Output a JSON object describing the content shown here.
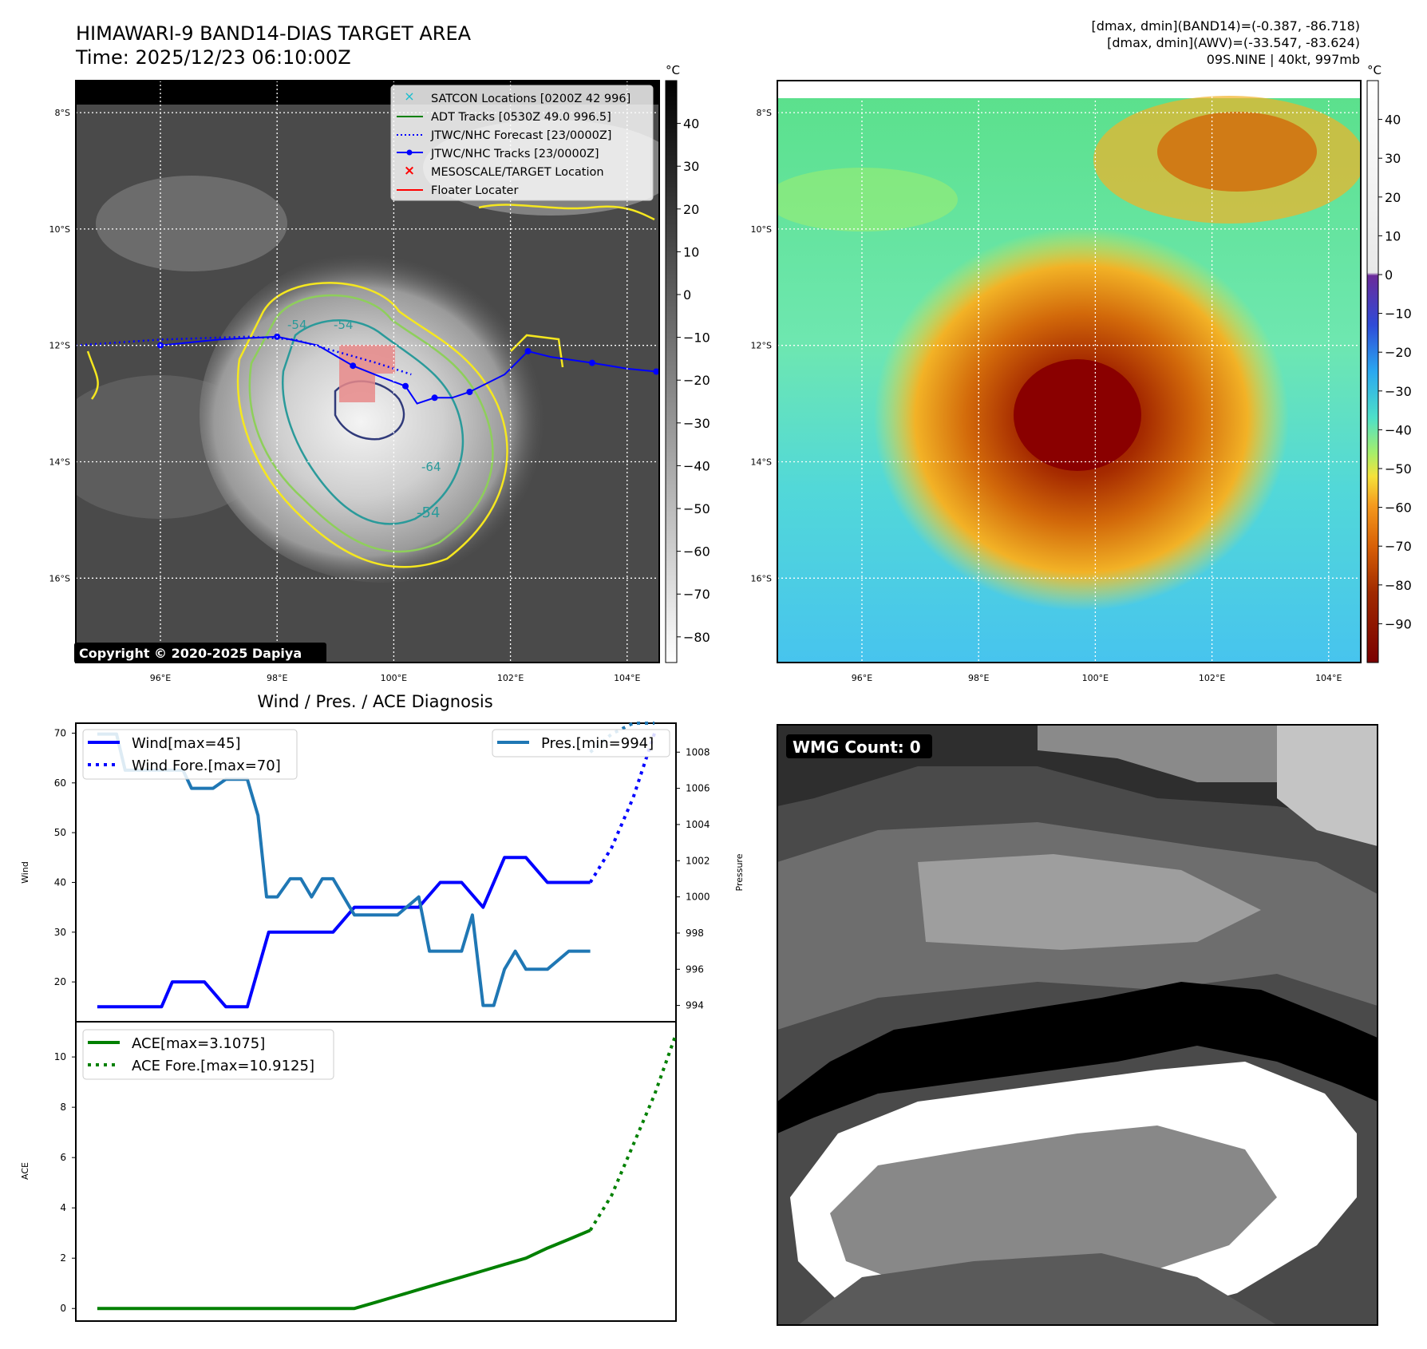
{
  "header": {
    "title_line1": "HIMAWARI-9 BAND14-DIAS TARGET AREA",
    "title_line2": "Time: 2025/12/23 06:10:00Z",
    "info_line1": "[dmax, dmin](BAND14)=(-0.387, -86.718)",
    "info_line2": "[dmax, dmin](AWV)=(-33.547, -83.624)",
    "info_line3": "09S.NINE | 40kt, 997mb"
  },
  "map": {
    "lat_labels": [
      "8°S",
      "10°S",
      "12°S",
      "14°S",
      "16°S"
    ],
    "lat_values": [
      -8,
      -10,
      -12,
      -14,
      -16
    ],
    "lon_labels": [
      "96°E",
      "98°E",
      "100°E",
      "102°E",
      "104°E"
    ],
    "lon_values": [
      96,
      98,
      100,
      102,
      104
    ],
    "lat_range": [
      -17.45,
      -7.45
    ],
    "lon_range": [
      94.55,
      104.55
    ],
    "copyright": "Copyright © 2020-2025 Dapiya",
    "contour_labels": [
      "-54",
      "-54",
      "-64",
      "-54"
    ],
    "legend": [
      {
        "label": "SATCON Locations [0200Z 42 996]",
        "color": "#17becf",
        "style": "x"
      },
      {
        "label": "ADT Tracks [0530Z 49.0 996.5]",
        "color": "#008000",
        "style": "solid"
      },
      {
        "label": "JTWC/NHC Forecast [23/0000Z]",
        "color": "#0000ff",
        "style": "dotted"
      },
      {
        "label": "JTWC/NHC Tracks [23/0000Z]",
        "color": "#0000ff",
        "style": "line-dot"
      },
      {
        "label": "MESOSCALE/TARGET Location",
        "color": "#ff0000",
        "style": "x"
      },
      {
        "label": "Floater Locater",
        "color": "#ff0000",
        "style": "solid"
      }
    ],
    "jtwc_track": [
      [
        96.0,
        -12.0
      ],
      [
        97.0,
        -11.9
      ],
      [
        98.0,
        -11.85
      ],
      [
        98.7,
        -12.0
      ],
      [
        99.3,
        -12.35
      ],
      [
        99.8,
        -12.55
      ],
      [
        100.2,
        -12.7
      ],
      [
        100.4,
        -13.0
      ],
      [
        100.7,
        -12.9
      ],
      [
        101.0,
        -12.9
      ],
      [
        101.3,
        -12.8
      ],
      [
        101.9,
        -12.5
      ],
      [
        102.3,
        -12.1
      ],
      [
        102.7,
        -12.2
      ],
      [
        103.4,
        -12.3
      ],
      [
        104.0,
        -12.4
      ],
      [
        104.5,
        -12.45
      ]
    ],
    "jtwc_forecast": [
      [
        94.55,
        -12.0
      ],
      [
        96.0,
        -11.9
      ],
      [
        97.5,
        -11.85
      ],
      [
        98.3,
        -11.9
      ],
      [
        99.0,
        -12.1
      ],
      [
        99.7,
        -12.3
      ],
      [
        100.3,
        -12.5
      ]
    ]
  },
  "colorbar_gray": {
    "unit": "°C",
    "ticks": [
      "40",
      "30",
      "20",
      "10",
      "0",
      "−10",
      "−20",
      "−30",
      "−40",
      "−50",
      "−60",
      "−70",
      "−80"
    ],
    "tick_values": [
      40,
      30,
      20,
      10,
      0,
      -10,
      -20,
      -30,
      -40,
      -50,
      -60,
      -70,
      -80
    ],
    "range": [
      -86,
      50
    ]
  },
  "colorbar_color": {
    "unit": "°C",
    "ticks": [
      "40",
      "30",
      "20",
      "10",
      "0",
      "−10",
      "−20",
      "−30",
      "−40",
      "−50",
      "−60",
      "−70",
      "−80",
      "−90"
    ],
    "tick_values": [
      40,
      30,
      20,
      10,
      0,
      -10,
      -20,
      -30,
      -40,
      -50,
      -60,
      -70,
      -80,
      -90
    ],
    "range": [
      -100,
      50
    ]
  },
  "diag": {
    "title": "Wind / Pres. / ACE Diagnosis",
    "ylabel_wind": "Wind",
    "ylabel_pres": "Pressure",
    "ylabel_ace": "ACE",
    "legend_wind": "Wind[max=45]",
    "legend_wind_fore": "Wind Fore.[max=70]",
    "legend_pres": "Pres.[min=994]",
    "legend_ace": "ACE[max=3.1075]",
    "legend_ace_fore": "ACE Fore.[max=10.9125]",
    "wind_ticks": [
      20,
      30,
      40,
      50,
      60,
      70
    ],
    "pres_ticks": [
      994,
      996,
      998,
      1000,
      1002,
      1004,
      1006,
      1008
    ],
    "ace_ticks": [
      0,
      2,
      4,
      6,
      8,
      10
    ]
  },
  "wmg": {
    "label": "WMG Count: 0"
  },
  "chart_data": [
    {
      "type": "line",
      "title": "Wind / Pres. / ACE Diagnosis",
      "xlabel": "",
      "ylabel": "Wind",
      "ylim": [
        12,
        72
      ],
      "xlim": [
        -1,
        27
      ],
      "series": [
        {
          "name": "Wind[max=45]",
          "color": "#0000ff",
          "style": "solid",
          "x": [
            0,
            1,
            2,
            3,
            3.5,
            4,
            5,
            6,
            6.5,
            7,
            8,
            9,
            10,
            11,
            12,
            13,
            14,
            15,
            16,
            17,
            18,
            19,
            20,
            21,
            22,
            23
          ],
          "values": [
            15,
            15,
            15,
            15,
            20,
            20,
            20,
            15,
            15,
            15,
            30,
            30,
            30,
            30,
            35,
            35,
            35,
            35,
            40,
            40,
            35,
            45,
            45,
            40,
            40,
            40
          ]
        },
        {
          "name": "Wind Fore.[max=70]",
          "color": "#0000ff",
          "style": "dotted",
          "x": [
            23,
            24,
            25,
            26
          ],
          "values": [
            40,
            47,
            57,
            70
          ]
        },
        {
          "name": "Pres.[min=994]",
          "color": "#1f77b4",
          "style": "solid",
          "axis": "right",
          "ylim": [
            993.1,
            1009.6
          ],
          "x": [
            0,
            0.9,
            1.3,
            2,
            3,
            4,
            4.4,
            5,
            5.4,
            6,
            7,
            7.5,
            7.9,
            8.4,
            9,
            9.5,
            10,
            10.5,
            11,
            11.5,
            12,
            13,
            13.3,
            14,
            15,
            15.5,
            16,
            17,
            17.5,
            18,
            18.5,
            19,
            19.5,
            20,
            21,
            22,
            23
          ],
          "values": [
            1009,
            1009,
            1007,
            1007,
            1007,
            1007,
            1006,
            1006,
            1006,
            1006.5,
            1006.5,
            1004.5,
            1000,
            1000,
            1001,
            1001,
            1000,
            1001,
            1001,
            1000,
            999,
            999,
            999,
            999,
            1000,
            997,
            997,
            997,
            999,
            994,
            994,
            996,
            997,
            996,
            996,
            997,
            997
          ]
        },
        {
          "name": "Pres. Fore.",
          "color": "#1f77b4",
          "style": "dotted",
          "axis": "right",
          "x": [
            23,
            24,
            25,
            26
          ],
          "values": [
            1008,
            1009,
            1009.6,
            1009.6
          ]
        }
      ]
    },
    {
      "type": "line",
      "title": "",
      "xlabel": "",
      "ylabel": "ACE",
      "ylim": [
        -0.5,
        11.4
      ],
      "xlim": [
        -1,
        27
      ],
      "series": [
        {
          "name": "ACE[max=3.1075]",
          "color": "#008000",
          "style": "solid",
          "x": [
            0,
            2,
            4,
            6,
            8,
            9,
            10,
            11,
            12,
            13,
            14,
            15,
            16,
            17,
            18,
            19,
            20,
            21,
            22,
            23
          ],
          "values": [
            0,
            0,
            0,
            0,
            0,
            0,
            0,
            0,
            0,
            0.25,
            0.5,
            0.75,
            1.0,
            1.25,
            1.5,
            1.75,
            2.0,
            2.4,
            2.75,
            3.1075
          ]
        },
        {
          "name": "ACE Fore.[max=10.9125]",
          "color": "#008000",
          "style": "dotted",
          "x": [
            23,
            24,
            25,
            26,
            27
          ],
          "values": [
            3.1075,
            4.5,
            6.5,
            8.5,
            10.9125
          ]
        }
      ]
    }
  ]
}
